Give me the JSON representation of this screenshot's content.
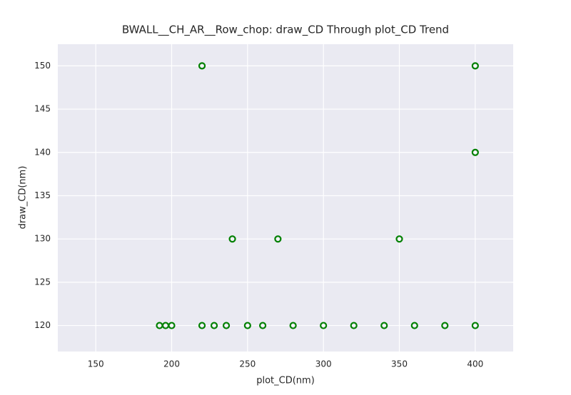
{
  "chart_data": {
    "type": "scatter",
    "title": "BWALL__CH_AR__Row_chop: draw_CD Through plot_CD Trend",
    "x_label": "plot_CD(nm)",
    "y_label": "draw_CD(nm)",
    "x": [
      220,
      400,
      400,
      240,
      270,
      350,
      192,
      196,
      200,
      220,
      228,
      236,
      250,
      260,
      280,
      300,
      320,
      340,
      360,
      380,
      400
    ],
    "values": [
      150,
      150,
      140,
      130,
      130,
      130,
      120,
      120,
      120,
      120,
      120,
      120,
      120,
      120,
      120,
      120,
      120,
      120,
      120,
      120,
      120
    ],
    "color": "#008000",
    "xlim": [
      125,
      425
    ],
    "ylim": [
      117,
      152.5
    ],
    "xticks": [
      150,
      200,
      250,
      300,
      350,
      400
    ],
    "yticks": [
      120,
      125,
      130,
      135,
      140,
      145,
      150
    ],
    "grid": true
  }
}
